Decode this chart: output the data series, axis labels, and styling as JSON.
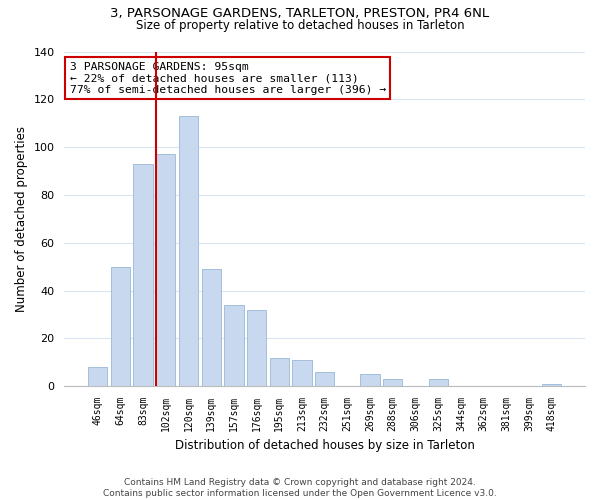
{
  "title": "3, PARSONAGE GARDENS, TARLETON, PRESTON, PR4 6NL",
  "subtitle": "Size of property relative to detached houses in Tarleton",
  "xlabel": "Distribution of detached houses by size in Tarleton",
  "ylabel": "Number of detached properties",
  "bar_labels": [
    "46sqm",
    "64sqm",
    "83sqm",
    "102sqm",
    "120sqm",
    "139sqm",
    "157sqm",
    "176sqm",
    "195sqm",
    "213sqm",
    "232sqm",
    "251sqm",
    "269sqm",
    "288sqm",
    "306sqm",
    "325sqm",
    "344sqm",
    "362sqm",
    "381sqm",
    "399sqm",
    "418sqm"
  ],
  "bar_values": [
    8,
    50,
    93,
    97,
    113,
    49,
    34,
    32,
    12,
    11,
    6,
    0,
    5,
    3,
    0,
    3,
    0,
    0,
    0,
    0,
    1
  ],
  "bar_color": "#c8d8ee",
  "bar_edge_color": "#99b8d8",
  "ylim": [
    0,
    140
  ],
  "yticks": [
    0,
    20,
    40,
    60,
    80,
    100,
    120,
    140
  ],
  "vline_color": "#cc0000",
  "annotation_title": "3 PARSONAGE GARDENS: 95sqm",
  "annotation_line1": "← 22% of detached houses are smaller (113)",
  "annotation_line2": "77% of semi-detached houses are larger (396) →",
  "annotation_box_color": "#ffffff",
  "annotation_box_edge": "#cc0000",
  "footer_line1": "Contains HM Land Registry data © Crown copyright and database right 2024.",
  "footer_line2": "Contains public sector information licensed under the Open Government Licence v3.0.",
  "background_color": "#ffffff",
  "grid_color": "#d8e4f0"
}
